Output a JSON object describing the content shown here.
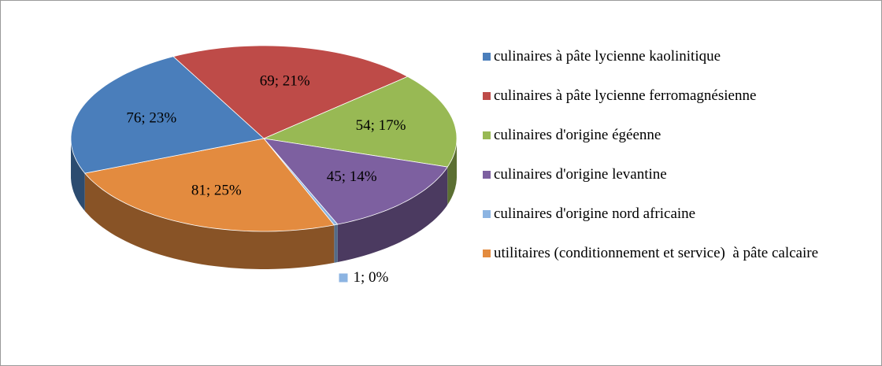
{
  "chart_data": {
    "type": "pie3d",
    "categories": [
      "culinaires à pâte lycienne kaolinitique",
      "culinaires à pâte lycienne ferromagnésienne",
      "culinaires d'origine égéenne",
      "culinaires d'origine levantine",
      "culinaires d'origine nord africaine",
      "utilitaires (conditionnement et service)  à pâte calcaire"
    ],
    "values": [
      76,
      69,
      54,
      45,
      1,
      81
    ],
    "value_labels": [
      "76; 23%",
      "69; 21%",
      "54; 17%",
      "45; 14%",
      "1; 0%",
      "81; 25%"
    ],
    "colors": [
      "#4a7ebb",
      "#be4b48",
      "#98b954",
      "#7d60a0",
      "#8cb4e2",
      "#e38b3f"
    ],
    "legend": "right"
  }
}
